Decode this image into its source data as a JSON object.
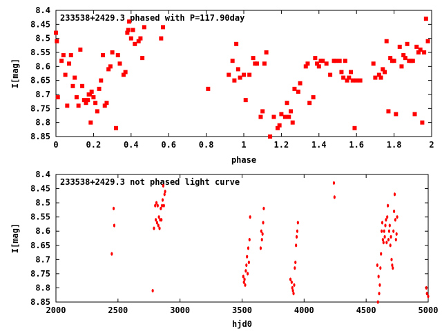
{
  "chart_data": [
    {
      "type": "scatter",
      "title": "233538+2429.3 phased with P=117.90day",
      "xlabel": "phase",
      "ylabel": "I[mag]",
      "xlim": [
        0,
        2
      ],
      "ylim": [
        8.85,
        8.4
      ],
      "y_inverted": true,
      "x_ticks": [
        0,
        0.2,
        0.4,
        0.6,
        0.8,
        1,
        1.2,
        1.4,
        1.6,
        1.8,
        2
      ],
      "x_tick_labels": [
        "0",
        "0.2",
        "0.4",
        "0.6",
        "0.8",
        "1",
        "1.2",
        "1.4",
        "1.6",
        "1.8",
        "2"
      ],
      "y_ticks": [
        8.4,
        8.45,
        8.5,
        8.55,
        8.6,
        8.65,
        8.7,
        8.75,
        8.8,
        8.85
      ],
      "y_tick_labels": [
        "8.4",
        "8.45",
        "8.5",
        "8.55",
        "8.6",
        "8.65",
        "8.7",
        "8.75",
        "8.8",
        "8.85"
      ],
      "marker_color": "#ff0000",
      "series": [
        {
          "x": [
            0.0,
            0.005,
            0.01,
            0.03,
            0.04,
            0.05,
            0.06,
            0.07,
            0.08,
            0.09,
            0.1,
            0.11,
            0.12,
            0.13,
            0.14,
            0.15,
            0.16,
            0.17,
            0.175,
            0.18,
            0.185,
            0.19,
            0.2,
            0.21,
            0.22,
            0.23,
            0.24,
            0.25,
            0.26,
            0.27,
            0.28,
            0.29,
            0.3,
            0.32,
            0.33,
            0.34,
            0.36,
            0.37,
            0.38,
            0.385,
            0.39,
            0.4,
            0.41,
            0.42,
            0.44,
            0.45,
            0.46,
            0.47,
            0.56,
            0.57,
            0.81,
            0.92,
            0.94,
            0.95,
            0.96,
            0.97,
            0.98,
            1.0,
            1.01,
            1.03,
            1.05,
            1.06,
            1.07,
            1.09,
            1.1,
            1.11,
            1.12,
            1.14,
            1.16,
            1.18,
            1.19,
            1.2,
            1.22,
            1.23,
            1.24,
            1.25,
            1.26,
            1.27,
            1.29,
            1.3,
            1.33,
            1.34,
            1.35,
            1.37,
            1.38,
            1.39,
            1.4,
            1.41,
            1.42,
            1.44,
            1.46,
            1.48,
            1.49,
            1.51,
            1.52,
            1.53,
            1.54,
            1.55,
            1.56,
            1.57,
            1.58,
            1.59,
            1.6,
            1.62,
            1.69,
            1.7,
            1.72,
            1.73,
            1.74,
            1.75,
            1.76,
            1.77,
            1.78,
            1.79,
            1.8,
            1.81,
            1.83,
            1.84,
            1.85,
            1.86,
            1.87,
            1.88,
            1.89,
            1.9,
            1.91,
            1.92,
            1.93,
            1.94,
            1.95,
            1.96,
            1.97,
            1.98
          ],
          "y": [
            8.48,
            8.51,
            8.71,
            8.58,
            8.56,
            8.63,
            8.74,
            8.59,
            8.56,
            8.67,
            8.64,
            8.71,
            8.74,
            8.54,
            8.67,
            8.72,
            8.73,
            8.72,
            8.7,
            8.7,
            8.8,
            8.69,
            8.71,
            8.73,
            8.76,
            8.68,
            8.65,
            8.56,
            8.74,
            8.73,
            8.61,
            8.6,
            8.55,
            8.82,
            8.56,
            8.59,
            8.63,
            8.62,
            8.48,
            8.47,
            8.44,
            8.5,
            8.47,
            8.52,
            8.51,
            8.5,
            8.57,
            8.46,
            8.5,
            8.46,
            8.68,
            8.63,
            8.58,
            8.65,
            8.52,
            8.61,
            8.64,
            8.63,
            8.72,
            8.63,
            8.57,
            8.59,
            8.59,
            8.78,
            8.76,
            8.59,
            8.55,
            8.85,
            8.78,
            8.82,
            8.81,
            8.77,
            8.78,
            8.73,
            8.78,
            8.76,
            8.8,
            8.68,
            8.69,
            8.66,
            8.6,
            8.59,
            8.73,
            8.71,
            8.57,
            8.59,
            8.6,
            8.58,
            8.58,
            8.59,
            8.63,
            8.58,
            8.58,
            8.58,
            8.62,
            8.64,
            8.58,
            8.65,
            8.64,
            8.62,
            8.65,
            8.82,
            8.65,
            8.65,
            8.59,
            8.64,
            8.63,
            8.64,
            8.61,
            8.62,
            8.51,
            8.76,
            8.57,
            8.58,
            8.58,
            8.77,
            8.53,
            8.6,
            8.56,
            8.57,
            8.52,
            8.58,
            8.58,
            8.58,
            8.77,
            8.53,
            8.55,
            8.54,
            8.8,
            8.55,
            8.43,
            8.51
          ]
        }
      ]
    },
    {
      "type": "scatter",
      "title": "233538+2429.3 not phased light curve",
      "xlabel": "hjd0",
      "ylabel": "I[mag]",
      "xlim": [
        2000,
        5000
      ],
      "ylim": [
        8.85,
        8.4
      ],
      "y_inverted": true,
      "x_ticks": [
        2000,
        2500,
        3000,
        3500,
        4000,
        4500,
        5000
      ],
      "x_tick_labels": [
        "2000",
        "2500",
        "3000",
        "3500",
        "4000",
        "4500",
        "5000"
      ],
      "y_ticks": [
        8.4,
        8.45,
        8.5,
        8.55,
        8.6,
        8.65,
        8.7,
        8.75,
        8.8,
        8.85
      ],
      "y_tick_labels": [
        "8.4",
        "8.45",
        "8.5",
        "8.55",
        "8.6",
        "8.65",
        "8.7",
        "8.75",
        "8.8",
        "8.85"
      ],
      "marker_color": "#ff0000",
      "series": [
        {
          "x": [
            2450,
            2465,
            2470,
            2780,
            2790,
            2800,
            2805,
            2810,
            2815,
            2820,
            2825,
            2830,
            2835,
            2840,
            2845,
            2850,
            2855,
            2860,
            2865,
            2870,
            2875,
            2880,
            3510,
            3515,
            3520,
            3525,
            3530,
            3535,
            3540,
            3545,
            3550,
            3555,
            3560,
            3565,
            3650,
            3655,
            3660,
            3665,
            3670,
            3675,
            3890,
            3900,
            3905,
            3910,
            3915,
            3920,
            3925,
            3930,
            3935,
            3940,
            3945,
            3950,
            4240,
            4245,
            4590,
            4595,
            4600,
            4605,
            4610,
            4615,
            4620,
            4625,
            4630,
            4635,
            4640,
            4645,
            4650,
            4655,
            4660,
            4665,
            4670,
            4675,
            4680,
            4685,
            4690,
            4695,
            4700,
            4705,
            4710,
            4715,
            4720,
            4725,
            4730,
            4735,
            4740,
            4745,
            4750,
            4985,
            4990,
            5000
          ],
          "y": [
            8.68,
            8.52,
            8.58,
            8.81,
            8.59,
            8.51,
            8.56,
            8.5,
            8.57,
            8.51,
            8.58,
            8.55,
            8.59,
            8.56,
            8.52,
            8.56,
            8.51,
            8.49,
            8.44,
            8.51,
            8.47,
            8.46,
            8.76,
            8.78,
            8.77,
            8.79,
            8.74,
            8.72,
            8.69,
            8.75,
            8.66,
            8.71,
            8.63,
            8.55,
            8.66,
            8.6,
            8.63,
            8.61,
            8.57,
            8.52,
            8.77,
            8.78,
            8.8,
            8.81,
            8.82,
            8.79,
            8.73,
            8.71,
            8.65,
            8.62,
            8.6,
            8.57,
            8.43,
            8.48,
            8.72,
            8.85,
            8.76,
            8.82,
            8.79,
            8.73,
            8.68,
            8.6,
            8.57,
            8.63,
            8.64,
            8.6,
            8.62,
            8.58,
            8.56,
            8.64,
            8.55,
            8.51,
            8.63,
            8.6,
            8.58,
            8.65,
            8.62,
            8.7,
            8.72,
            8.73,
            8.6,
            8.53,
            8.47,
            8.56,
            8.63,
            8.61,
            8.55,
            8.8,
            8.82,
            8.83
          ]
        }
      ]
    }
  ]
}
